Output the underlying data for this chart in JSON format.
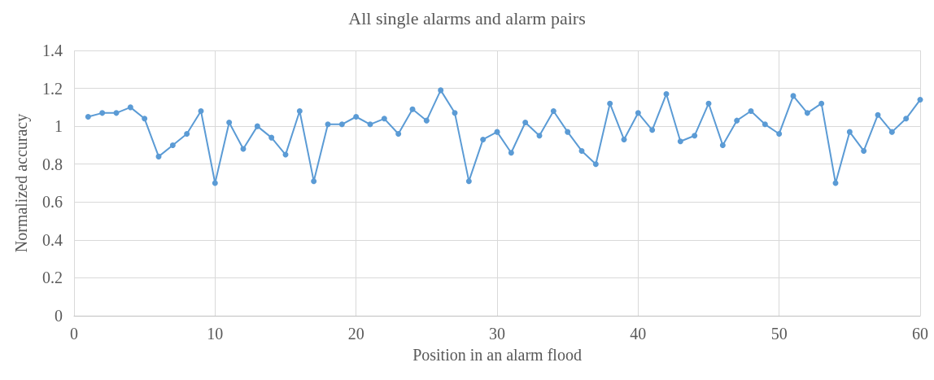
{
  "chart_data": {
    "type": "line",
    "title": "All single alarms and alarm pairs",
    "xlabel": "Position in an alarm flood",
    "ylabel": "Normalized accuracy",
    "x": [
      1,
      2,
      3,
      4,
      5,
      6,
      7,
      8,
      9,
      10,
      11,
      12,
      13,
      14,
      15,
      16,
      17,
      18,
      19,
      20,
      21,
      22,
      23,
      24,
      25,
      26,
      27,
      28,
      29,
      30,
      31,
      32,
      33,
      34,
      35,
      36,
      37,
      38,
      39,
      40,
      41,
      42,
      43,
      44,
      45,
      46,
      47,
      48,
      49,
      50,
      51,
      52,
      53,
      54,
      55,
      56,
      57,
      58,
      59,
      60
    ],
    "series": [
      {
        "color": "#5b9bd5",
        "values": [
          1.05,
          1.07,
          1.07,
          1.1,
          1.04,
          0.84,
          0.9,
          0.96,
          1.08,
          0.7,
          1.02,
          0.88,
          1.0,
          0.94,
          0.85,
          1.08,
          0.71,
          1.01,
          1.01,
          1.05,
          1.01,
          1.04,
          0.96,
          1.09,
          1.03,
          1.19,
          1.07,
          0.71,
          0.93,
          0.97,
          0.86,
          1.02,
          0.95,
          1.08,
          0.97,
          0.87,
          0.8,
          1.12,
          0.93,
          1.07,
          0.98,
          1.17,
          0.92,
          0.95,
          1.12,
          0.9,
          1.03,
          1.08,
          1.01,
          0.96,
          1.16,
          1.07,
          1.12,
          0.7,
          0.97,
          0.87,
          1.06,
          0.97,
          1.04,
          1.14
        ]
      }
    ],
    "xlim": [
      0,
      60
    ],
    "xticks": [
      0,
      10,
      20,
      30,
      40,
      50,
      60
    ],
    "ylim": [
      0,
      1.4
    ],
    "yticks": [
      0,
      0.2,
      0.4,
      0.6,
      0.8,
      1,
      1.2,
      1.4
    ],
    "grid": true,
    "marker": "circle",
    "line_style": "solid"
  }
}
